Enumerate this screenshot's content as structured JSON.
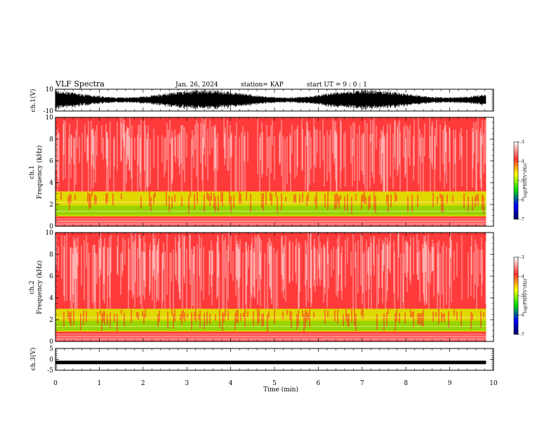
{
  "header": {
    "title": "VLF Spectra",
    "date": "Jan. 26, 2024",
    "station": "station= KAP",
    "start": "start  UT =   9 : 0  : 1"
  },
  "colors": {
    "background": "#ffffff",
    "spectrum_base": "#ff2020",
    "band_yellow": "#e8e800",
    "band_green": "#30d030"
  },
  "chart_data": [
    {
      "type": "line",
      "name": "ch1-waveform",
      "ylabel": "ch.1(V)",
      "ylim": [
        -10,
        10
      ],
      "yticks": [
        "10",
        "-10"
      ],
      "xlim": [
        0,
        10
      ]
    },
    {
      "type": "heatmap",
      "name": "ch1-spectrogram",
      "ylabel_line1": "ch.1",
      "ylabel_line2": "Frequency  (kHz)",
      "ylim": [
        0,
        10
      ],
      "yticks": [
        "0",
        "2",
        "4",
        "6",
        "8",
        "10"
      ],
      "xlim": [
        0,
        10
      ],
      "colorbar": {
        "label": "log(PSD)(V²/Hz)",
        "range": [
          -7,
          -3
        ],
        "ticks": [
          "-3",
          "-4",
          "-5",
          "-6",
          "-7"
        ]
      }
    },
    {
      "type": "heatmap",
      "name": "ch2-spectrogram",
      "ylabel_line1": "ch.2",
      "ylabel_line2": "Frequency  (kHz)",
      "ylim": [
        0,
        10
      ],
      "yticks": [
        "0",
        "2",
        "4",
        "6",
        "8",
        "10"
      ],
      "xlim": [
        0,
        10
      ],
      "colorbar": {
        "label": "log(PSD)(V²/Hz)",
        "range": [
          -7,
          -3
        ],
        "ticks": [
          "-3",
          "-4",
          "-5",
          "-6",
          "-7"
        ]
      }
    },
    {
      "type": "line",
      "name": "ch3-waveform",
      "ylabel": "ch.3(V)",
      "ylim": [
        -5,
        5
      ],
      "yticks": [
        "5",
        "0",
        "-5"
      ],
      "xlim": [
        0,
        10
      ]
    }
  ],
  "xaxis": {
    "label": "Time  (min)",
    "ticks": [
      "0",
      "1",
      "2",
      "3",
      "4",
      "5",
      "6",
      "7",
      "8",
      "9",
      "10"
    ],
    "range": [
      0,
      10
    ],
    "data_end": 9.83
  }
}
